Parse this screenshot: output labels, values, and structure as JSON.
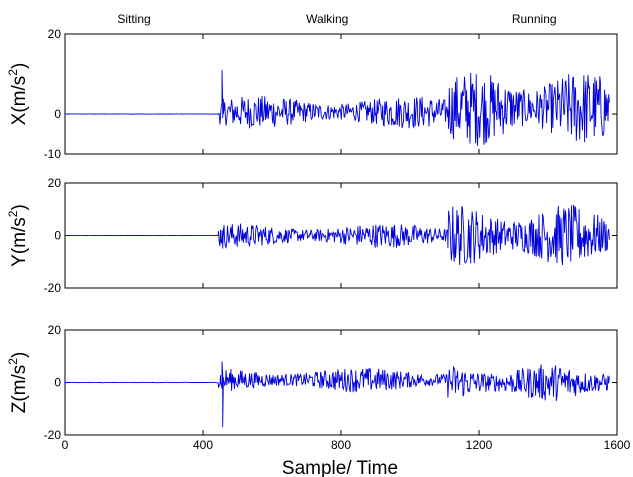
{
  "chart_data": {
    "type": "line",
    "title": "",
    "xlabel": "Sample/ Time",
    "x_ticks": [
      0,
      400,
      800,
      1200,
      1600
    ],
    "xlim": [
      0,
      1600
    ],
    "activity_labels": [
      {
        "text": "Sitting",
        "x": 200
      },
      {
        "text": "Walking",
        "x": 760
      },
      {
        "text": "Running",
        "x": 1360
      }
    ],
    "color": "#0000dd",
    "segments": [
      {
        "name": "sitting",
        "start": 0,
        "end": 445
      },
      {
        "name": "walking",
        "start": 445,
        "end": 1110
      },
      {
        "name": "running",
        "start": 1110,
        "end": 1580
      }
    ],
    "panels": [
      {
        "ylabel": "X(m/s",
        "ylabel_sup": "2",
        "ylabel_tail": ")",
        "ylim": [
          -10,
          20
        ],
        "yticks": [
          -10,
          0,
          20
        ],
        "ytick_labels": [
          "-10",
          "0",
          "20"
        ],
        "spike": {
          "x": 455,
          "peak": 11,
          "trough": -1
        },
        "series": [
          {
            "segment": "sitting",
            "mean": 0,
            "amplitude": 0.1
          },
          {
            "segment": "walking",
            "mean": 0.5,
            "amplitude": 3.5
          },
          {
            "segment": "running",
            "mean": 1.5,
            "amplitude": 8
          }
        ]
      },
      {
        "ylabel": "Y(m/s",
        "ylabel_sup": "2",
        "ylabel_tail": ")",
        "ylim": [
          -20,
          20
        ],
        "yticks": [
          -20,
          0,
          20
        ],
        "ytick_labels": [
          "-20",
          "0",
          "20"
        ],
        "spike": {
          "x": 455,
          "peak": 2,
          "trough": -5
        },
        "series": [
          {
            "segment": "sitting",
            "mean": 0,
            "amplitude": 0.1
          },
          {
            "segment": "walking",
            "mean": 0,
            "amplitude": 4
          },
          {
            "segment": "running",
            "mean": 0,
            "amplitude": 10
          }
        ]
      },
      {
        "ylabel": "Z(m/s",
        "ylabel_sup": "2",
        "ylabel_tail": ")",
        "ylim": [
          -20,
          20
        ],
        "yticks": [
          -20,
          0,
          20
        ],
        "ytick_labels": [
          "-20",
          "0",
          "20"
        ],
        "spike": {
          "x": 455,
          "peak": 8,
          "trough": -17
        },
        "series": [
          {
            "segment": "sitting",
            "mean": 0,
            "amplitude": 0.2
          },
          {
            "segment": "walking",
            "mean": 1,
            "amplitude": 4
          },
          {
            "segment": "running",
            "mean": 0,
            "amplitude": 6
          }
        ]
      }
    ]
  }
}
